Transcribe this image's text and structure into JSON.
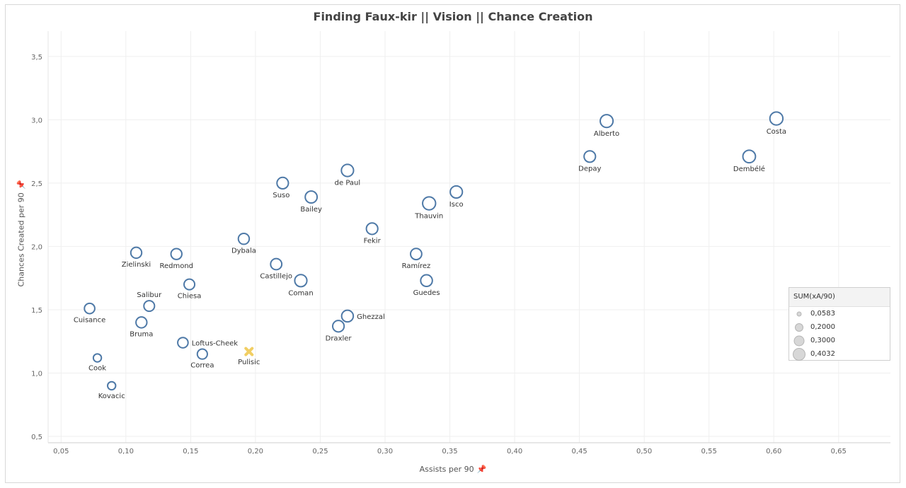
{
  "chart_data": {
    "type": "scatter",
    "title": "Finding Faux-kir  ||  Vision  ||  Chance Creation",
    "xlabel": "Assists per 90",
    "ylabel": "Chances Created per 90",
    "xlim": [
      0.04,
      0.69
    ],
    "ylim": [
      0.45,
      3.7
    ],
    "xticks": [
      "0,05",
      "0,10",
      "0,15",
      "0,20",
      "0,25",
      "0,30",
      "0,35",
      "0,40",
      "0,45",
      "0,50",
      "0,55",
      "0,60",
      "0,65"
    ],
    "yticks": [
      "0,5",
      "1,0",
      "1,5",
      "2,0",
      "2,5",
      "3,0",
      "3,5"
    ],
    "grid": true,
    "size_legend": {
      "title": "SUM(xA/90)",
      "items": [
        "0,0583",
        "0,2000",
        "0,3000",
        "0,4032"
      ],
      "values": [
        0.0583,
        0.2,
        0.3,
        0.4032
      ],
      "placement": "right"
    },
    "points": [
      {
        "name": "Costa",
        "x": 0.602,
        "y": 3.01,
        "size": 0.4,
        "label": "below"
      },
      {
        "name": "Alberto",
        "x": 0.471,
        "y": 2.99,
        "size": 0.38,
        "label": "below"
      },
      {
        "name": "Depay",
        "x": 0.458,
        "y": 2.71,
        "size": 0.26,
        "label": "below"
      },
      {
        "name": "Dembélé",
        "x": 0.581,
        "y": 2.71,
        "size": 0.36,
        "label": "below"
      },
      {
        "name": "de Paul",
        "x": 0.271,
        "y": 2.6,
        "size": 0.32,
        "label": "below"
      },
      {
        "name": "Suso",
        "x": 0.221,
        "y": 2.5,
        "size": 0.26,
        "label": "below-left"
      },
      {
        "name": "Bailey",
        "x": 0.243,
        "y": 2.39,
        "size": 0.3,
        "label": "below"
      },
      {
        "name": "Isco",
        "x": 0.355,
        "y": 2.43,
        "size": 0.32,
        "label": "below"
      },
      {
        "name": "Thauvin",
        "x": 0.334,
        "y": 2.34,
        "size": 0.4,
        "label": "below"
      },
      {
        "name": "Fekir",
        "x": 0.29,
        "y": 2.14,
        "size": 0.26,
        "label": "below"
      },
      {
        "name": "Dybala",
        "x": 0.191,
        "y": 2.06,
        "size": 0.22,
        "label": "below"
      },
      {
        "name": "Zielinski",
        "x": 0.108,
        "y": 1.95,
        "size": 0.22,
        "label": "below"
      },
      {
        "name": "Redmond",
        "x": 0.139,
        "y": 1.94,
        "size": 0.22,
        "label": "below"
      },
      {
        "name": "Ramírez",
        "x": 0.324,
        "y": 1.94,
        "size": 0.24,
        "label": "below"
      },
      {
        "name": "Castillejo",
        "x": 0.216,
        "y": 1.86,
        "size": 0.24,
        "label": "below"
      },
      {
        "name": "Coman",
        "x": 0.235,
        "y": 1.73,
        "size": 0.32,
        "label": "below"
      },
      {
        "name": "Guedes",
        "x": 0.332,
        "y": 1.73,
        "size": 0.28,
        "label": "below"
      },
      {
        "name": "Chiesa",
        "x": 0.149,
        "y": 1.7,
        "size": 0.2,
        "label": "below"
      },
      {
        "name": "Salibur",
        "x": 0.118,
        "y": 1.53,
        "size": 0.2,
        "label": "above"
      },
      {
        "name": "Cuisance",
        "x": 0.072,
        "y": 1.51,
        "size": 0.18,
        "label": "below"
      },
      {
        "name": "Ghezzal",
        "x": 0.271,
        "y": 1.45,
        "size": 0.28,
        "label": "right"
      },
      {
        "name": "Bruma",
        "x": 0.112,
        "y": 1.4,
        "size": 0.22,
        "label": "below"
      },
      {
        "name": "Draxler",
        "x": 0.264,
        "y": 1.37,
        "size": 0.26,
        "label": "below"
      },
      {
        "name": "Loftus-Cheek",
        "x": 0.144,
        "y": 1.24,
        "size": 0.18,
        "label": "right"
      },
      {
        "name": "Pulisic",
        "x": 0.195,
        "y": 1.17,
        "size": 0.0,
        "label": "below",
        "highlight": true
      },
      {
        "name": "Correa",
        "x": 0.159,
        "y": 1.15,
        "size": 0.16,
        "label": "below"
      },
      {
        "name": "Cook",
        "x": 0.078,
        "y": 1.12,
        "size": 0.06,
        "label": "below"
      },
      {
        "name": "Kovacic",
        "x": 0.089,
        "y": 0.9,
        "size": 0.06,
        "label": "below"
      }
    ],
    "colors": {
      "marker": "#4e79a7",
      "highlight": "#f1ce63",
      "grid": "#efefef"
    }
  }
}
